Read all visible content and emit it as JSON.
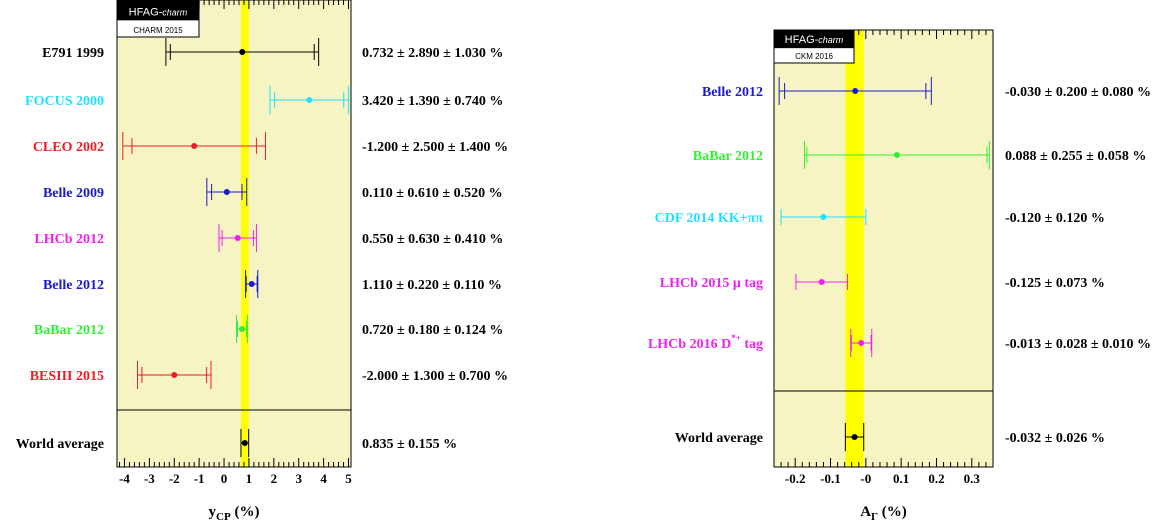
{
  "colors": {
    "panel_bg": "#f7f4c4",
    "band": "#ffff00",
    "black": "#000000",
    "cyan": "#22e0ff",
    "red": "#ee1c24",
    "blue": "#1a1acc",
    "magenta": "#ee22ee",
    "green": "#33ee33"
  },
  "chart_data": [
    {
      "type": "forest",
      "badge": {
        "line1": "HFAG-",
        "line1_italic": "charm",
        "line2": "CHARM 2015"
      },
      "xlabel": {
        "main": "y",
        "sub": "CP",
        "unit": " (%)"
      },
      "xlim": [
        -4.3,
        5.1
      ],
      "xticks": [
        "-4",
        "-3",
        "-2",
        "-1",
        "0",
        "1",
        "2",
        "3",
        "4",
        "5"
      ],
      "band": [
        0.68,
        0.99
      ],
      "measurements": [
        {
          "label": "E791 1999",
          "value": 0.732,
          "stat": 2.89,
          "syst": 1.03,
          "text": "0.732 ± 2.890 ± 1.030 %",
          "color": "black"
        },
        {
          "label": "FOCUS 2000",
          "value": 3.42,
          "stat": 1.39,
          "syst": 0.74,
          "text": "3.420 ± 1.390 ± 0.740 %",
          "color": "cyan"
        },
        {
          "label": "CLEO 2002",
          "value": -1.2,
          "stat": 2.5,
          "syst": 1.4,
          "text": "-1.200 ± 2.500 ± 1.400 %",
          "color": "red"
        },
        {
          "label": "Belle 2009",
          "value": 0.11,
          "stat": 0.61,
          "syst": 0.52,
          "text": "0.110 ± 0.610 ± 0.520 %",
          "color": "blue"
        },
        {
          "label": "LHCb 2012",
          "value": 0.55,
          "stat": 0.63,
          "syst": 0.41,
          "text": "0.550 ± 0.630 ± 0.410 %",
          "color": "magenta"
        },
        {
          "label": "Belle 2012",
          "value": 1.11,
          "stat": 0.22,
          "syst": 0.11,
          "text": "1.110 ± 0.220 ± 0.110 %",
          "color": "blue"
        },
        {
          "label": "BaBar 2012",
          "value": 0.72,
          "stat": 0.18,
          "syst": 0.124,
          "text": "0.720 ± 0.180 ± 0.124 %",
          "color": "green"
        },
        {
          "label": "BESIII 2015",
          "value": -2.0,
          "stat": 1.3,
          "syst": 0.7,
          "text": "-2.000 ± 1.300 ± 0.700 %",
          "color": "red"
        }
      ],
      "average": {
        "label": "World average",
        "value": 0.835,
        "err": 0.155,
        "text": "0.835 ± 0.155 %"
      }
    },
    {
      "type": "forest",
      "badge": {
        "line1": "HFAG-",
        "line1_italic": "charm",
        "line2": "CKM 2016"
      },
      "xlabel": {
        "main": "A",
        "sub": "Γ",
        "unit": " (%)"
      },
      "xlim": [
        -0.26,
        0.36
      ],
      "xticks": [
        "-0.2",
        "-0.1",
        "-0",
        "0.1",
        "0.2",
        "0.3"
      ],
      "band": [
        -0.058,
        -0.006
      ],
      "measurements": [
        {
          "label": "Belle 2012",
          "value": -0.03,
          "stat": 0.2,
          "syst": 0.08,
          "text": "-0.030 ± 0.200 ± 0.080 %",
          "color": "blue"
        },
        {
          "label": "BaBar 2012",
          "value": 0.088,
          "stat": 0.255,
          "syst": 0.058,
          "text": "0.088 ± 0.255 ± 0.058 %",
          "color": "green"
        },
        {
          "label": "CDF 2014 KK+ππ",
          "value": -0.12,
          "stat": 0.12,
          "syst": 0,
          "text": "-0.120 ± 0.120 %",
          "color": "cyan"
        },
        {
          "label": "LHCb 2015 μ tag",
          "value": -0.125,
          "stat": 0.073,
          "syst": 0,
          "text": "-0.125 ± 0.073 %",
          "color": "magenta"
        },
        {
          "label": "LHCb 2016 D*+ tag",
          "value": -0.013,
          "stat": 0.028,
          "syst": 0.01,
          "text": "-0.013 ± 0.028 ± 0.010 %",
          "color": "magenta"
        }
      ],
      "average": {
        "label": "World average",
        "value": -0.032,
        "err": 0.026,
        "text": "-0.032 ± 0.026 %"
      }
    }
  ]
}
